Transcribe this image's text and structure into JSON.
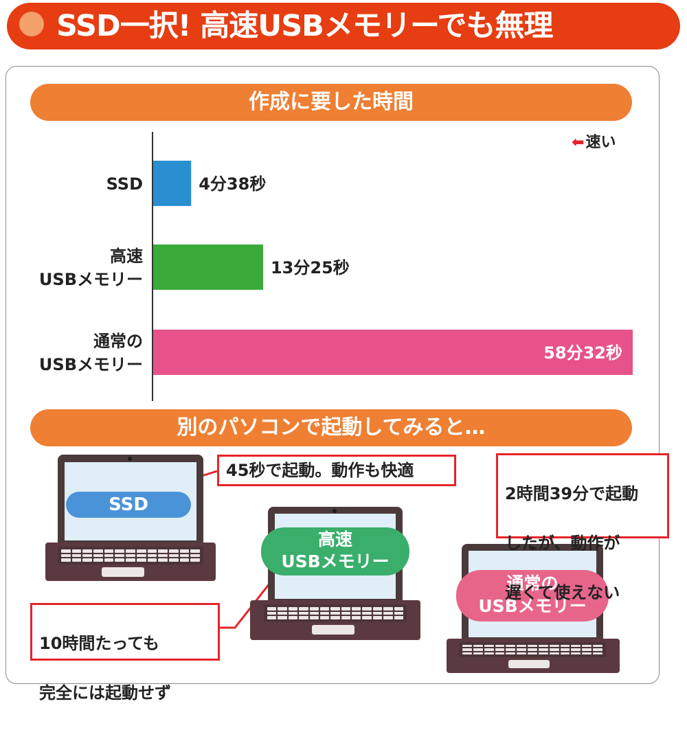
{
  "header": {
    "title": "SSD一択! 高速USBメモリーでも無理"
  },
  "section1": {
    "title": "作成に要した時間"
  },
  "section2": {
    "title": "別のパソコンで起動してみると…"
  },
  "faster_label": "速い",
  "chart_data": {
    "type": "bar",
    "orientation": "horizontal",
    "categories": [
      "SSD",
      "高速\nUSBメモリー",
      "通常の\nUSBメモリー"
    ],
    "values": [
      4.633,
      13.417,
      58.533
    ],
    "value_labels": [
      "4分38秒",
      "13分25秒",
      "58分32秒"
    ],
    "value_unit": "分",
    "colors": [
      "#2a8fd0",
      "#3aab3a",
      "#e8528a"
    ],
    "xlim": [
      0,
      58.533
    ],
    "grid": false,
    "legend": "none"
  },
  "boot": {
    "ssd": {
      "label": "SSD",
      "color": "#4a93d9",
      "callout": "45秒で起動。動作も快適"
    },
    "fast_usb": {
      "label_line1": "高速",
      "label_line2": "USBメモリー",
      "color": "#3aae6b",
      "callout_line1": "10時間たっても",
      "callout_line2": "完全には起動せず"
    },
    "normal_usb": {
      "label_line1": "通常の",
      "label_line2": "USBメモリー",
      "color": "#e8658a",
      "callout_line1": "2時間39分で起動",
      "callout_line2": "したが、動作が",
      "callout_line3": "遅くて使えない"
    }
  },
  "colors": {
    "banner": "#e63d12",
    "section_pill": "#ef7f32",
    "callout_border": "#e5232a"
  }
}
